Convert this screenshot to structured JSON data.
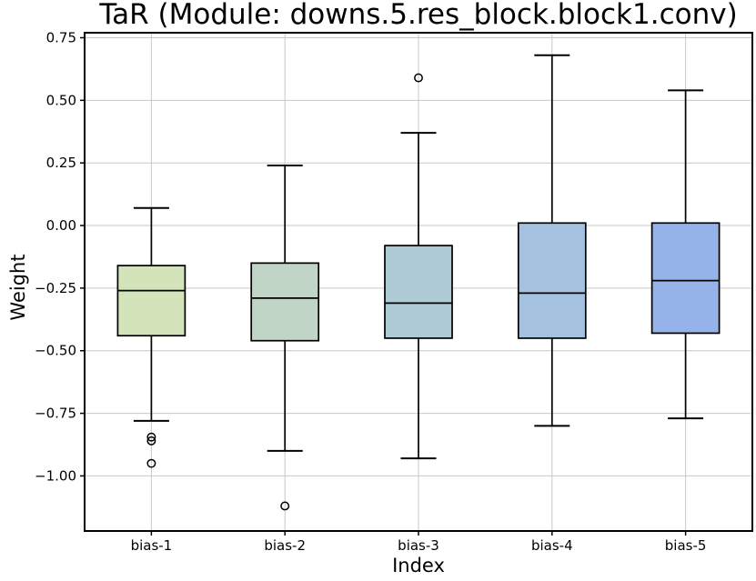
{
  "figure": {
    "background": "#ffffff",
    "text_color": "#000000",
    "grid_color": "#c8c8c8",
    "spine_color": "#000000"
  },
  "chart_data": {
    "type": "boxplot",
    "title": "TaR (Module: downs.5.res_block.block1.conv)",
    "xlabel": "Index",
    "ylabel": "Weight",
    "categories": [
      "bias-1",
      "bias-2",
      "bias-3",
      "bias-4",
      "bias-5"
    ],
    "y_ticks": [
      0.75,
      0.5,
      0.25,
      0.0,
      -0.25,
      -0.5,
      -0.75,
      -1.0
    ],
    "y_tick_labels": [
      "0.75",
      "0.50",
      "0.25",
      "0.00",
      "−0.25",
      "−0.50",
      "−0.75",
      "−1.00"
    ],
    "ylim": [
      -1.22,
      0.77
    ],
    "grid": true,
    "legend": "none",
    "series": [
      {
        "label": "bias-1",
        "whisker_low": -0.78,
        "q1": -0.44,
        "median": -0.26,
        "q3": -0.16,
        "whisker_high": 0.07,
        "outliers": [
          -0.845,
          -0.86,
          -0.95
        ],
        "color": "#d3e3ba"
      },
      {
        "label": "bias-2",
        "whisker_low": -0.9,
        "q1": -0.46,
        "median": -0.29,
        "q3": -0.15,
        "whisker_high": 0.24,
        "outliers": [
          -1.12
        ],
        "color": "#c0d5c5"
      },
      {
        "label": "bias-3",
        "whisker_low": -0.93,
        "q1": -0.45,
        "median": -0.31,
        "q3": -0.08,
        "whisker_high": 0.37,
        "outliers": [
          0.59
        ],
        "color": "#aecad5"
      },
      {
        "label": "bias-4",
        "whisker_low": -0.8,
        "q1": -0.45,
        "median": -0.27,
        "q3": 0.01,
        "whisker_high": 0.68,
        "outliers": [],
        "color": "#a4c2e0"
      },
      {
        "label": "bias-5",
        "whisker_low": -0.77,
        "q1": -0.43,
        "median": -0.22,
        "q3": 0.01,
        "whisker_high": 0.54,
        "outliers": [],
        "color": "#96b3e9"
      }
    ]
  }
}
